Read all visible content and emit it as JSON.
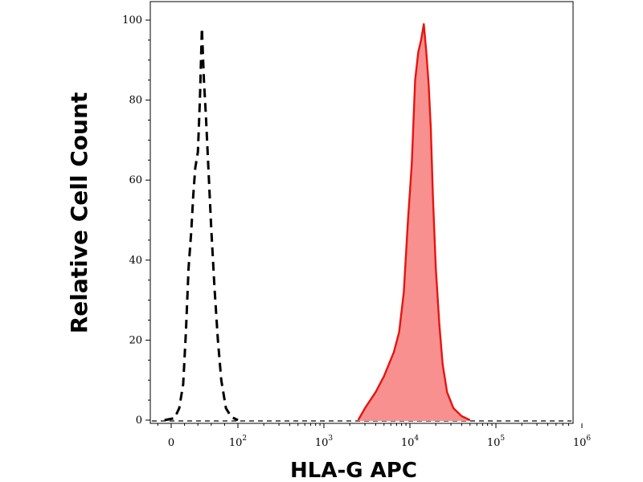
{
  "chart_data": {
    "type": "area",
    "xlabel": "HLA-G APC",
    "ylabel": "Relative Cell Count",
    "x_scale": "biexponential",
    "x_ticks": [
      {
        "value": 0,
        "base": "0",
        "exp": ""
      },
      {
        "value": 100,
        "base": "10",
        "exp": "2"
      },
      {
        "value": 1000,
        "base": "10",
        "exp": "3"
      },
      {
        "value": 10000,
        "base": "10",
        "exp": "4"
      },
      {
        "value": 100000,
        "base": "10",
        "exp": "5"
      },
      {
        "value": 1000000,
        "base": "10",
        "exp": "6"
      }
    ],
    "y_ticks": [
      0,
      20,
      40,
      60,
      80,
      100
    ],
    "ylim": [
      0,
      100
    ],
    "grid": false,
    "series": [
      {
        "style": "dashed",
        "color": "#000000",
        "points": [
          [
            -10,
            0
          ],
          [
            5,
            0.5
          ],
          [
            12,
            3
          ],
          [
            18,
            9
          ],
          [
            22,
            22
          ],
          [
            26,
            38
          ],
          [
            30,
            47
          ],
          [
            33,
            56
          ],
          [
            36,
            63
          ],
          [
            40,
            67
          ],
          [
            43,
            80
          ],
          [
            46,
            98
          ],
          [
            49,
            85
          ],
          [
            52,
            76
          ],
          [
            56,
            62
          ],
          [
            60,
            48
          ],
          [
            65,
            33
          ],
          [
            70,
            20
          ],
          [
            75,
            10
          ],
          [
            82,
            3
          ],
          [
            90,
            0.8
          ],
          [
            100,
            0
          ]
        ]
      },
      {
        "style": "filled",
        "color": "#e8140f",
        "fill": "#f99090",
        "points": [
          [
            2500,
            0
          ],
          [
            3000,
            3
          ],
          [
            4000,
            7
          ],
          [
            5000,
            11
          ],
          [
            6500,
            17
          ],
          [
            7500,
            22
          ],
          [
            8500,
            32
          ],
          [
            9500,
            50
          ],
          [
            10500,
            64
          ],
          [
            11500,
            85
          ],
          [
            12500,
            92
          ],
          [
            13500,
            95
          ],
          [
            14500,
            99
          ],
          [
            15500,
            92
          ],
          [
            16500,
            84
          ],
          [
            17500,
            73
          ],
          [
            18500,
            56
          ],
          [
            20000,
            38
          ],
          [
            22000,
            24
          ],
          [
            24000,
            14
          ],
          [
            27000,
            7
          ],
          [
            32000,
            3
          ],
          [
            40000,
            1
          ],
          [
            50000,
            0
          ]
        ]
      }
    ]
  }
}
